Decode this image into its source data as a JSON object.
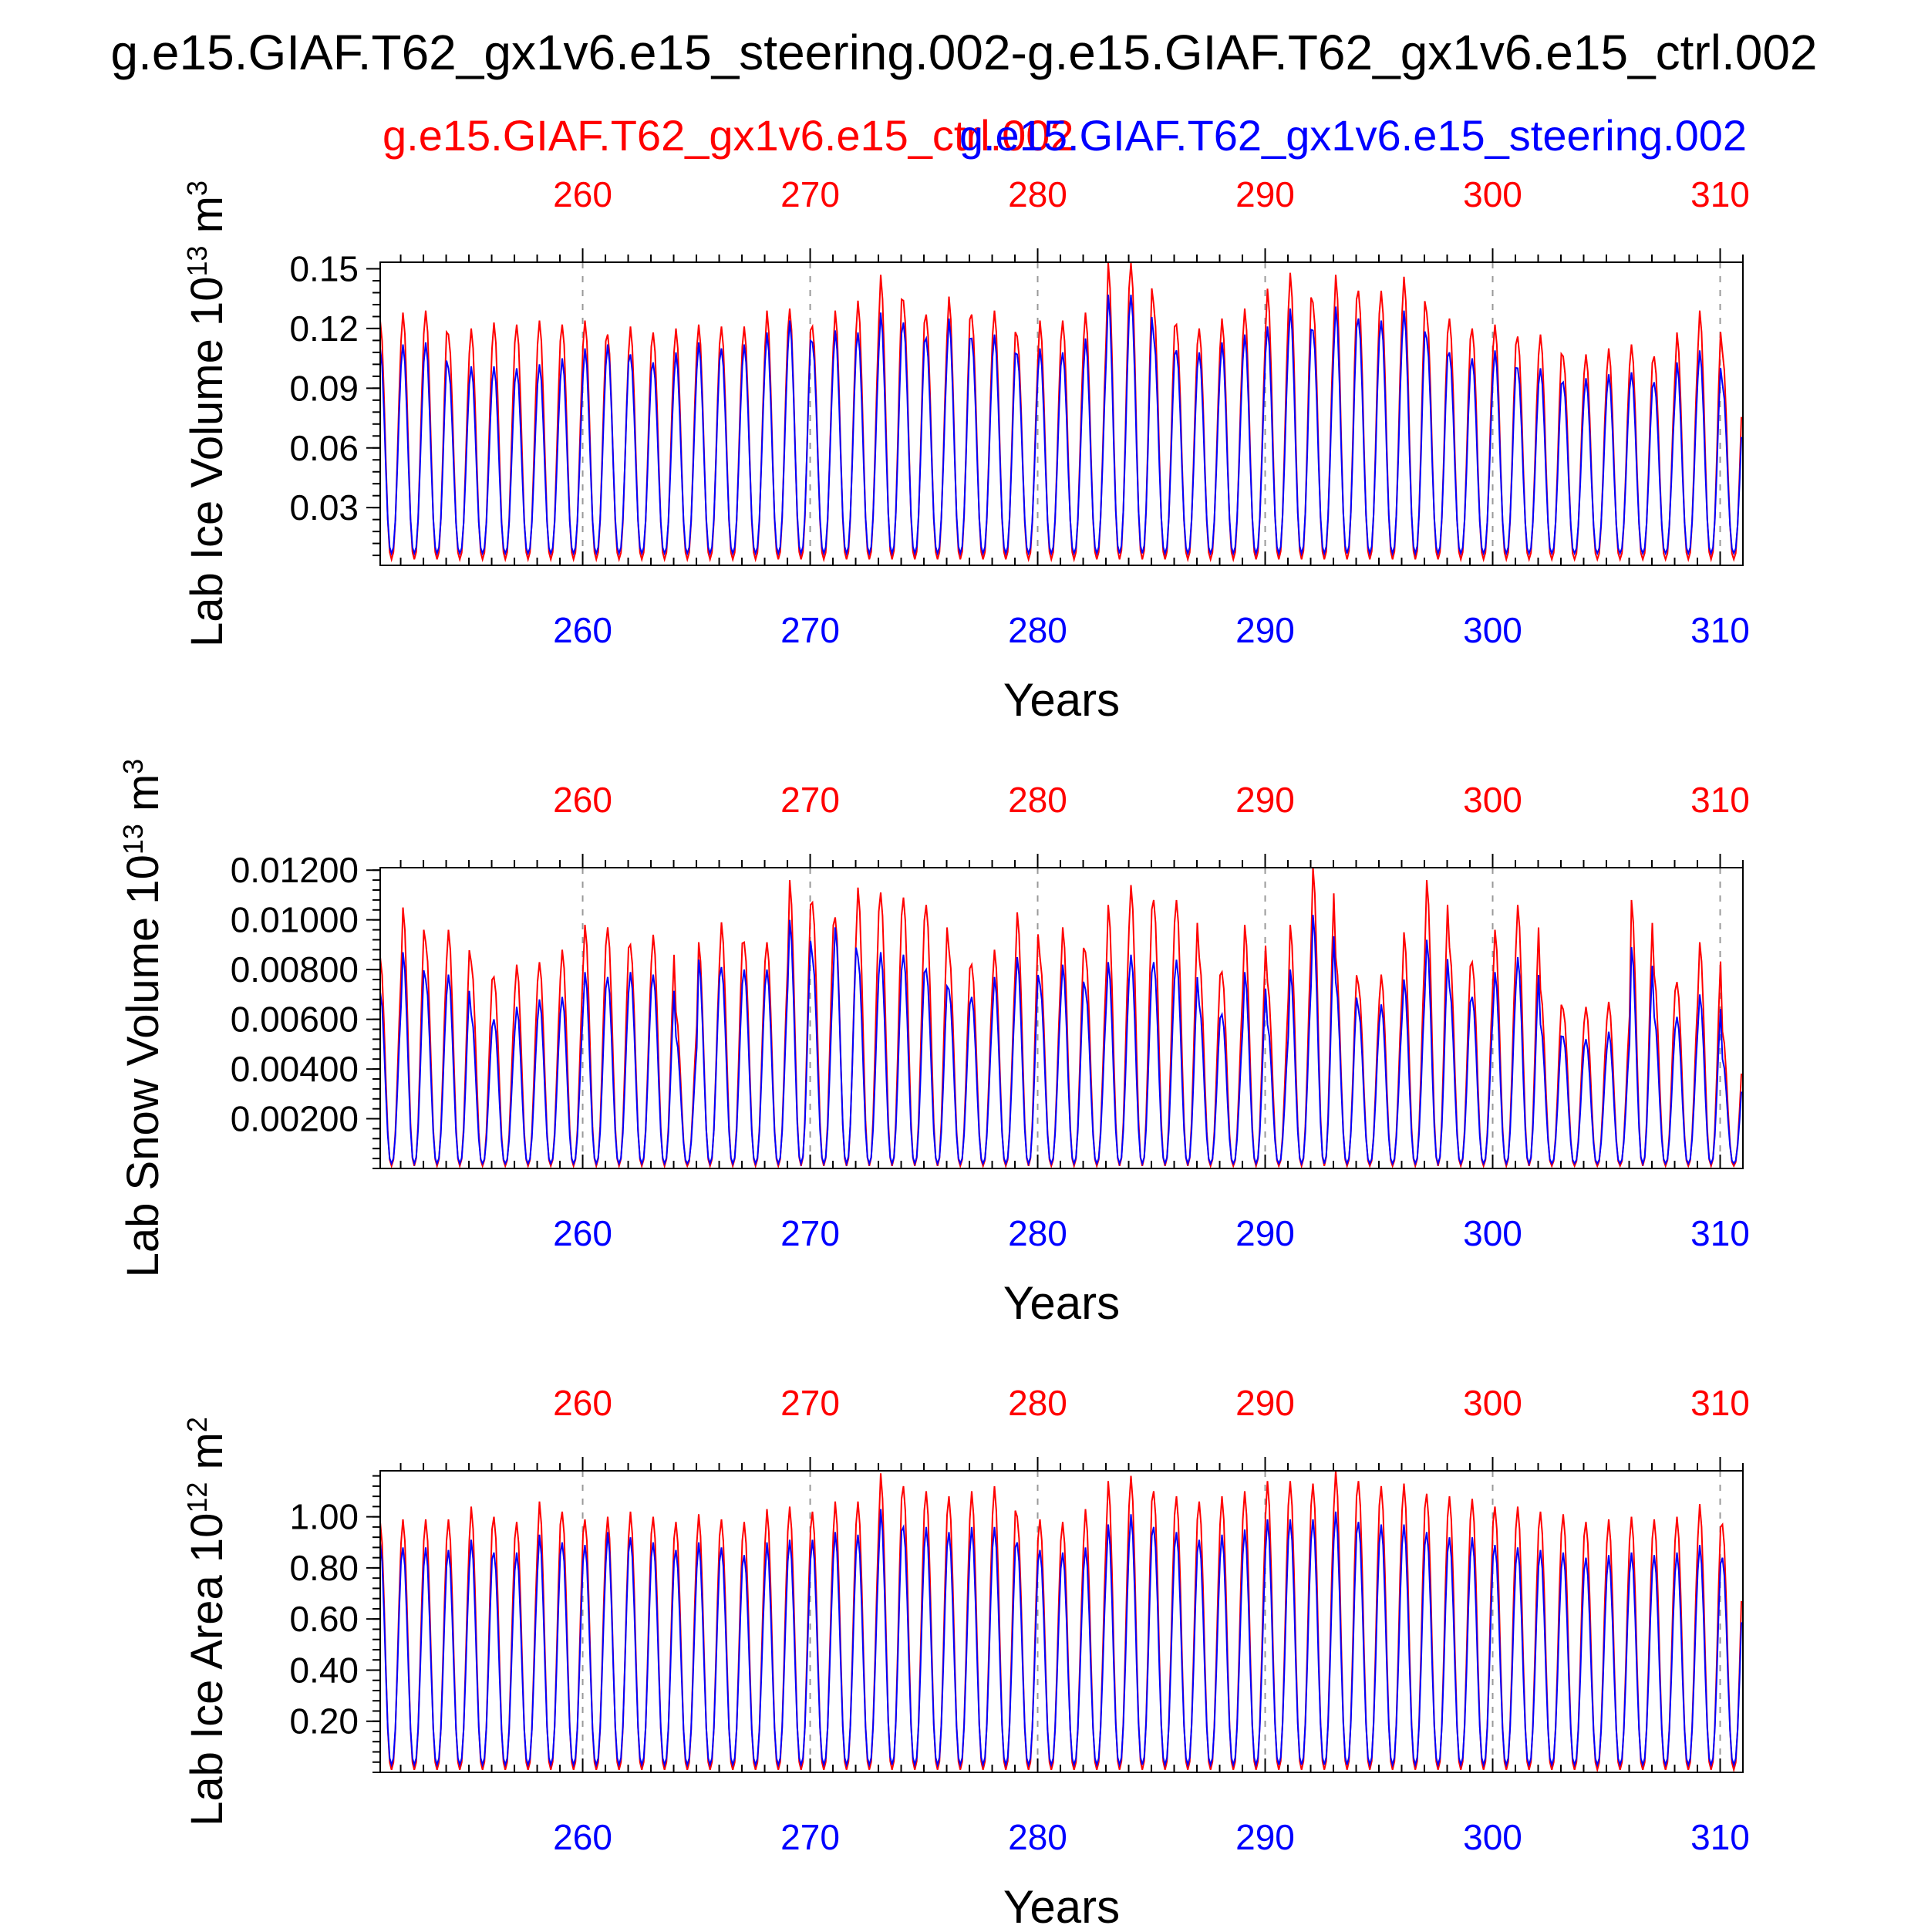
{
  "title": "g.e15.GIAF.T62_gx1v6.e15_steering.002-g.e15.GIAF.T62_gx1v6.e15_ctrl.002",
  "legend": {
    "red_label": "g.e15.GIAF.T62_gx1v6.e15_ctrl.002",
    "blue_label": "g.e15.GIAF.T62_gx1v6.e15_steering.002"
  },
  "colors": {
    "ctrl": "#ff0000",
    "steering": "#0000ff",
    "axis": "#000000",
    "grid": "#999999"
  },
  "chart_data": [
    {
      "type": "line",
      "title": "",
      "xlabel": "Years",
      "ylabel_main": "Lab Ice Volume 10",
      "ylabel_exp": "13",
      "ylabel_unit": " m",
      "ylabel_unit_exp": "3",
      "xlim": [
        251.1,
        311.0
      ],
      "ylim": [
        0.001,
        0.1533
      ],
      "x_ticks": [
        260,
        270,
        280,
        290,
        300,
        310
      ],
      "x_tick_labels": [
        "260",
        "270",
        "280",
        "290",
        "300",
        "310"
      ],
      "y_ticks": [
        0.03,
        0.06,
        0.09,
        0.12,
        0.15
      ],
      "y_tick_labels": [
        "0.03",
        "0.06",
        "0.09",
        "0.12",
        "0.15"
      ],
      "grid": "dashed vertical at x ticks",
      "series": [
        {
          "name": "g.e15.GIAF.T62_gx1v6.e15_ctrl.002",
          "color": "#ff0000",
          "min": 0.004,
          "peaks": [
            0.124,
            0.128,
            0.129,
            0.117,
            0.12,
            0.123,
            0.122,
            0.124,
            0.122,
            0.124,
            0.117,
            0.121,
            0.118,
            0.12,
            0.122,
            0.121,
            0.121,
            0.129,
            0.13,
            0.121,
            0.129,
            0.134,
            0.147,
            0.134,
            0.127,
            0.136,
            0.127,
            0.129,
            0.116,
            0.124,
            0.124,
            0.128,
            0.153,
            0.153,
            0.132,
            0.122,
            0.12,
            0.125,
            0.13,
            0.14,
            0.148,
            0.133,
            0.147,
            0.139,
            0.139,
            0.146,
            0.128,
            0.125,
            0.12,
            0.122,
            0.116,
            0.117,
            0.106,
            0.107,
            0.11,
            0.112,
            0.106,
            0.118,
            0.129,
            0.108
          ]
        },
        {
          "name": "g.e15.GIAF.T62_gx1v6.e15_steering.002",
          "color": "#0000ff",
          "min": 0.007,
          "peaks": [
            0.11,
            0.112,
            0.113,
            0.1,
            0.101,
            0.101,
            0.1,
            0.102,
            0.105,
            0.11,
            0.112,
            0.107,
            0.103,
            0.108,
            0.113,
            0.11,
            0.112,
            0.118,
            0.124,
            0.113,
            0.119,
            0.118,
            0.128,
            0.123,
            0.115,
            0.125,
            0.115,
            0.117,
            0.107,
            0.11,
            0.108,
            0.115,
            0.137,
            0.137,
            0.116,
            0.109,
            0.108,
            0.113,
            0.117,
            0.121,
            0.13,
            0.119,
            0.131,
            0.125,
            0.124,
            0.129,
            0.115,
            0.108,
            0.105,
            0.109,
            0.1,
            0.1,
            0.093,
            0.095,
            0.097,
            0.098,
            0.093,
            0.103,
            0.109,
            0.092
          ]
        }
      ]
    },
    {
      "type": "line",
      "title": "",
      "xlabel": "Years",
      "ylabel_main": "Lab Snow Volume 10",
      "ylabel_exp": "13",
      "ylabel_unit": " m",
      "ylabel_unit_exp": "3",
      "xlim": [
        251.1,
        311.0
      ],
      "ylim": [
        0.0,
        0.0121
      ],
      "x_ticks": [
        260,
        270,
        280,
        290,
        300,
        310
      ],
      "x_tick_labels": [
        "260",
        "270",
        "280",
        "290",
        "300",
        "310"
      ],
      "y_ticks": [
        0.002,
        0.004,
        0.006,
        0.008,
        0.01,
        0.012
      ],
      "y_tick_labels": [
        "0.00200",
        "0.00400",
        "0.00600",
        "0.00800",
        "0.01000",
        "0.01200"
      ],
      "grid": "dashed vertical at x ticks",
      "series": [
        {
          "name": "g.e15.GIAF.T62_gx1v6.e15_ctrl.002",
          "color": "#ff0000",
          "min": 0.0001,
          "peaks": [
            0.0085,
            0.0105,
            0.0091,
            0.0096,
            0.0083,
            0.0077,
            0.0082,
            0.0083,
            0.0088,
            0.0098,
            0.0097,
            0.009,
            0.0094,
            0.0063,
            0.0091,
            0.0099,
            0.0091,
            0.0091,
            0.0116,
            0.0107,
            0.0101,
            0.0113,
            0.0111,
            0.0109,
            0.0106,
            0.0088,
            0.0082,
            0.0088,
            0.0103,
            0.0085,
            0.0097,
            0.0087,
            0.0106,
            0.0114,
            0.0108,
            0.0108,
            0.0085,
            0.0079,
            0.0098,
            0.0075,
            0.0098,
            0.0121,
            0.0085,
            0.0074,
            0.0078,
            0.0095,
            0.0116,
            0.0089,
            0.0083,
            0.0096,
            0.0106,
            0.0072,
            0.0064,
            0.0065,
            0.0067,
            0.0108,
            0.0078,
            0.0075,
            0.0091,
            0.0055
          ]
        },
        {
          "name": "g.e15.GIAF.T62_gx1v6.e15_steering.002",
          "color": "#0000ff",
          "min": 0.0002,
          "peaks": [
            0.0071,
            0.0087,
            0.0076,
            0.0078,
            0.0062,
            0.006,
            0.0065,
            0.0068,
            0.0069,
            0.0079,
            0.0077,
            0.0079,
            0.0078,
            0.0053,
            0.0084,
            0.0081,
            0.008,
            0.008,
            0.01,
            0.0085,
            0.0097,
            0.0085,
            0.0087,
            0.0086,
            0.008,
            0.0072,
            0.0069,
            0.0077,
            0.0085,
            0.0074,
            0.0082,
            0.0072,
            0.0083,
            0.0086,
            0.0083,
            0.0084,
            0.0066,
            0.0062,
            0.0079,
            0.0058,
            0.008,
            0.0102,
            0.0075,
            0.0064,
            0.0066,
            0.0076,
            0.0092,
            0.0073,
            0.0069,
            0.0079,
            0.0085,
            0.0058,
            0.0053,
            0.0052,
            0.0055,
            0.0089,
            0.0061,
            0.0061,
            0.007,
            0.0044
          ]
        }
      ]
    },
    {
      "type": "line",
      "title": "",
      "xlabel": "Years",
      "ylabel_main": "Lab Ice Area 10",
      "ylabel_exp": "12",
      "ylabel_unit": " m",
      "ylabel_unit_exp": "2",
      "xlim": [
        251.1,
        311.0
      ],
      "ylim": [
        0.0,
        1.18
      ],
      "x_ticks": [
        260,
        270,
        280,
        290,
        300,
        310
      ],
      "x_tick_labels": [
        "260",
        "270",
        "280",
        "290",
        "300",
        "310"
      ],
      "y_ticks": [
        0.2,
        0.4,
        0.6,
        0.8,
        1.0
      ],
      "y_tick_labels": [
        "0.20",
        "0.40",
        "0.60",
        "0.80",
        "1.00"
      ],
      "grid": "dashed vertical at x ticks",
      "series": [
        {
          "name": "g.e15.GIAF.T62_gx1v6.e15_ctrl.002",
          "color": "#ff0000",
          "min": 0.01,
          "peaks": [
            0.98,
            0.99,
            0.99,
            0.99,
            1.04,
            1.0,
            0.98,
            1.06,
            1.02,
            0.99,
            1.0,
            1.02,
            1.0,
            0.98,
            1.01,
            0.99,
            0.98,
            1.03,
            1.04,
            1.02,
            1.06,
            1.06,
            1.17,
            1.12,
            1.1,
            1.08,
            1.1,
            1.12,
            1.0,
            0.99,
            0.98,
            1.03,
            1.14,
            1.16,
            1.1,
            1.08,
            1.06,
            1.08,
            1.1,
            1.14,
            1.14,
            1.13,
            1.18,
            1.14,
            1.12,
            1.13,
            1.09,
            1.08,
            1.07,
            1.04,
            1.04,
            1.02,
            1.01,
            0.98,
            0.99,
            1.0,
            0.99,
            1.0,
            1.05,
            0.97
          ]
        },
        {
          "name": "g.e15.GIAF.T62_gx1v6.e15_steering.002",
          "color": "#0000ff",
          "min": 0.03,
          "peaks": [
            0.9,
            0.88,
            0.88,
            0.87,
            0.91,
            0.86,
            0.86,
            0.93,
            0.9,
            0.89,
            0.94,
            0.92,
            0.9,
            0.87,
            0.9,
            0.88,
            0.85,
            0.9,
            0.91,
            0.91,
            0.94,
            0.93,
            1.03,
            0.96,
            0.96,
            0.94,
            0.96,
            0.96,
            0.9,
            0.87,
            0.86,
            0.88,
            0.97,
            1.01,
            0.96,
            0.94,
            0.91,
            0.93,
            0.95,
            0.99,
            0.99,
            0.99,
            1.02,
            0.98,
            0.97,
            0.97,
            0.94,
            0.92,
            0.92,
            0.89,
            0.88,
            0.87,
            0.86,
            0.84,
            0.85,
            0.86,
            0.85,
            0.86,
            0.89,
            0.84
          ]
        }
      ]
    }
  ]
}
